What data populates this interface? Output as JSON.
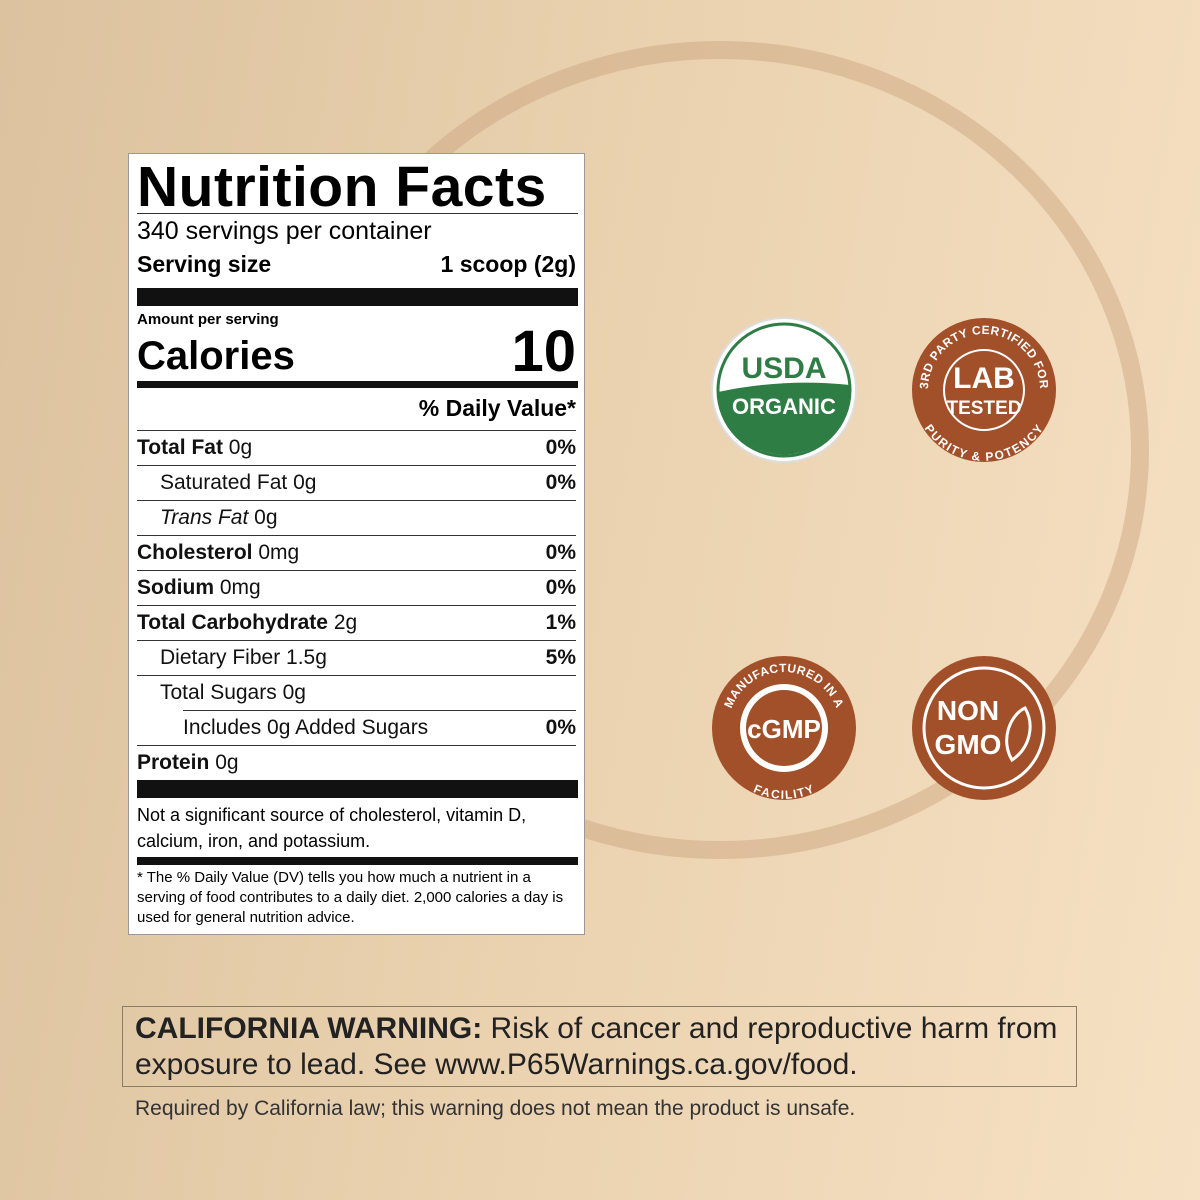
{
  "label": {
    "title": "Nutrition Facts",
    "servings": "340 servings per container",
    "serving_size_label": "Serving size",
    "serving_size_value": "1 scoop (2g)",
    "amount_per_serving": "Amount per serving",
    "calories_label": "Calories",
    "calories_value": "10",
    "dv_header": "% Daily Value*",
    "rows": [
      {
        "name": "Total Fat",
        "amount": "0g",
        "dv": "0%",
        "bold": true,
        "indent": 0
      },
      {
        "name": "Saturated Fat",
        "amount": "0g",
        "dv": "0%",
        "bold": false,
        "indent": 1
      },
      {
        "name": "Trans Fat",
        "amount": "0g",
        "bold": false,
        "indent": 1,
        "italic": true
      },
      {
        "name": "Cholesterol",
        "amount": "0mg",
        "dv": "0%",
        "bold": true,
        "indent": 0
      },
      {
        "name": "Sodium",
        "amount": "0mg",
        "dv": "0%",
        "bold": true,
        "indent": 0
      },
      {
        "name": "Total Carbohydrate",
        "amount": "2g",
        "dv": "1%",
        "bold": true,
        "indent": 0
      },
      {
        "name": "Dietary Fiber",
        "amount": "1.5g",
        "dv": "5%",
        "bold": false,
        "indent": 1
      },
      {
        "name": "Total Sugars",
        "amount": "0g",
        "bold": false,
        "indent": 1
      },
      {
        "name": "Includes 0g Added Sugars",
        "dv": "0%",
        "bold": false,
        "indent": 2
      },
      {
        "name": "Protein",
        "amount": "0g",
        "bold": true,
        "indent": 0
      }
    ],
    "note": "Not a significant source of cholesterol, vitamin D, calcium, iron, and potassium.",
    "footnote": "* The % Daily Value (DV) tells you how much a nutrient in a serving of food contributes to a daily diet. 2,000 calories a day is used for general nutrition advice."
  },
  "badges": {
    "usda": {
      "top": "USDA",
      "bottom": "ORGANIC"
    },
    "lab": {
      "ring_top": "3RD PARTY CERTIFIED FOR",
      "center_top": "LAB",
      "center_bottom": "TESTED",
      "ring_bottom": "PURITY & POTENCY"
    },
    "cgmp": {
      "ring_top": "MANUFACTURED IN A",
      "center": "cGMP",
      "ring_bottom": "FACILITY"
    },
    "nongmo": {
      "center_top": "NON",
      "center_bottom": "GMO"
    }
  },
  "warning": {
    "heading": "CALIFORNIA WARNING:",
    "text": "Risk of cancer and reproductive harm from exposure to lead. See www.P65Warnings.ca.gov/food.",
    "disclaimer": "Required by California law; this warning does not mean the product is unsafe."
  }
}
